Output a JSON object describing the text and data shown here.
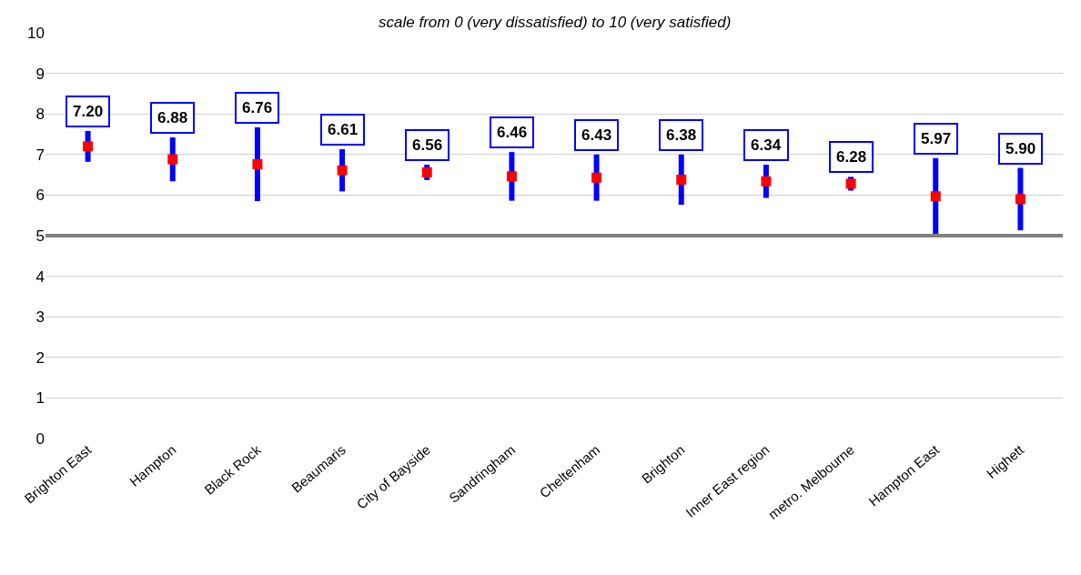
{
  "chart_data": {
    "type": "scatter",
    "subtitle": "scale from 0 (very dissatisfied) to 10 (very satisfied)",
    "categories": [
      "Brighton East",
      "Hampton",
      "Black Rock",
      "Beaumaris",
      "City of Bayside",
      "Sandringham",
      "Cheltenham",
      "Brighton",
      "Inner East region",
      "metro. Melbourne",
      "Hampton East",
      "Highett"
    ],
    "values": [
      7.2,
      6.88,
      6.76,
      6.61,
      6.56,
      6.46,
      6.43,
      6.38,
      6.34,
      6.28,
      5.97,
      5.9
    ],
    "errors": [
      0.38,
      0.54,
      0.91,
      0.52,
      0.19,
      0.6,
      0.57,
      0.62,
      0.41,
      0.17,
      0.94,
      0.77
    ],
    "color": "#ff0000",
    "marker": "square",
    "value_labels": [
      "7.20",
      "6.88",
      "6.76",
      "6.61",
      "6.56",
      "6.46",
      "6.43",
      "6.38",
      "6.34",
      "6.28",
      "5.97",
      "5.90"
    ],
    "ylim": [
      0,
      10
    ],
    "yticks": [
      0,
      1,
      2,
      3,
      4,
      5,
      6,
      7,
      8,
      9,
      10
    ],
    "grid": "y",
    "ref_lines": [
      {
        "axis": "y",
        "value": 5,
        "color": "#808080"
      }
    ]
  }
}
